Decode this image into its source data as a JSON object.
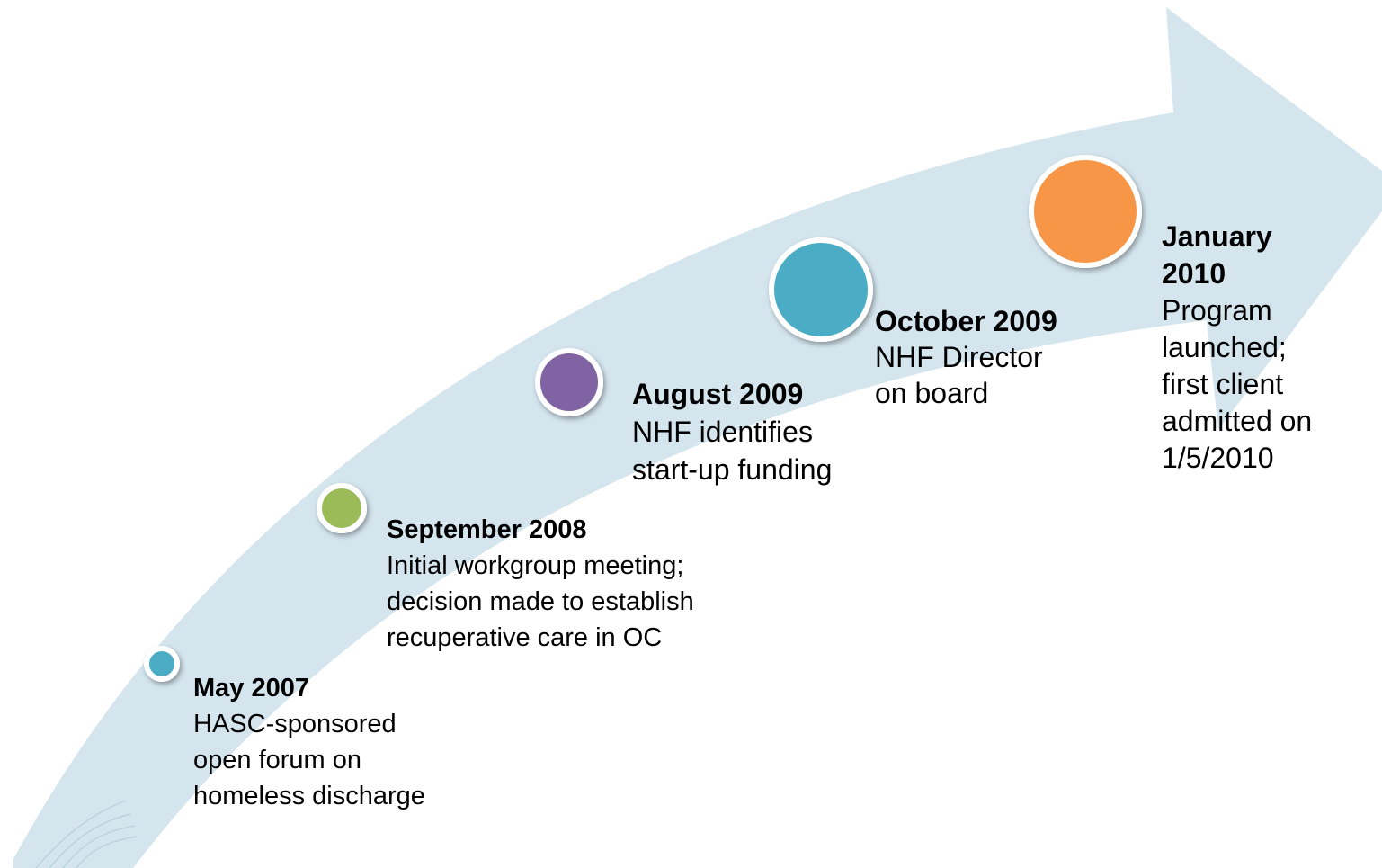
{
  "milestones": [
    {
      "date": "May 2007",
      "lines": [
        "HASC-sponsored",
        "open forum on",
        "homeless discharge"
      ]
    },
    {
      "date": "September 2008",
      "lines": [
        "Initial workgroup meeting;",
        "decision made to establish",
        "recuperative care in OC"
      ]
    },
    {
      "date": "August 2009",
      "lines": [
        "NHF identifies",
        "start-up funding"
      ]
    },
    {
      "date": "October 2009",
      "lines": [
        "NHF Director",
        "on board"
      ]
    },
    {
      "date": "January 2010",
      "lines": [
        "Program",
        "launched;",
        "first client",
        "admitted on",
        "1/5/2010"
      ]
    }
  ]
}
